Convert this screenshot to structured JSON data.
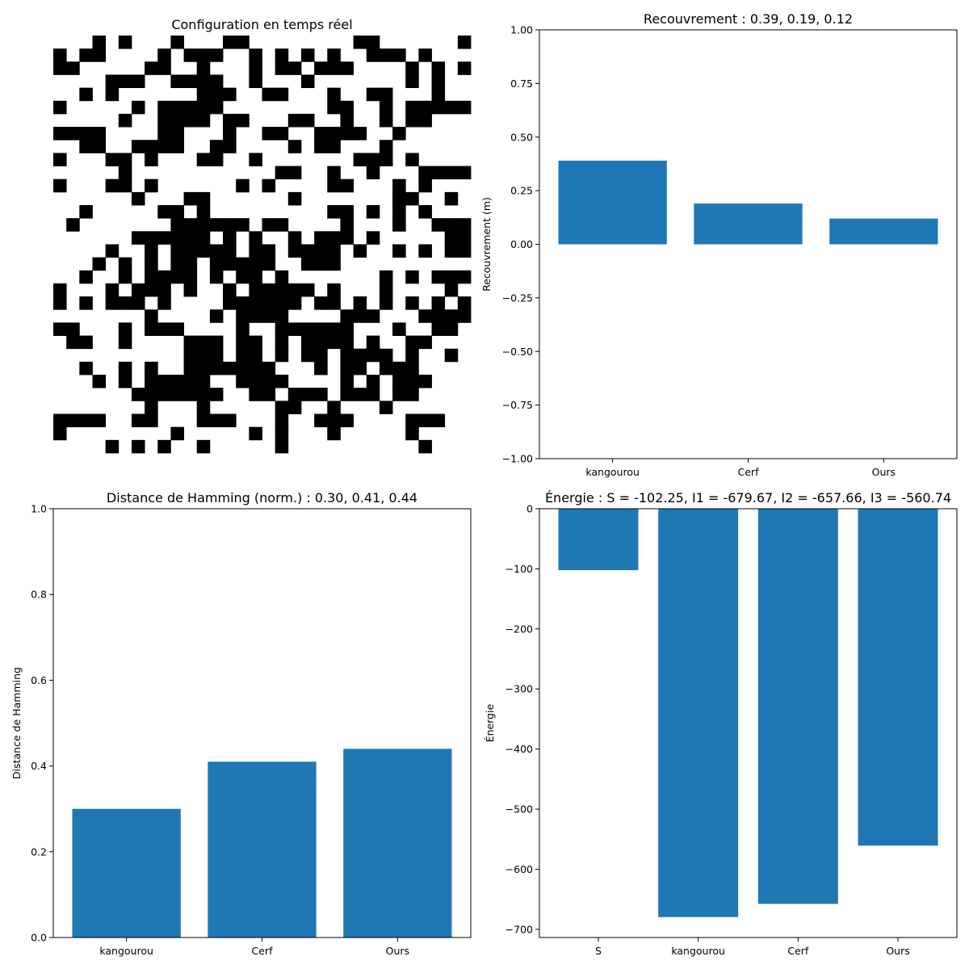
{
  "chart_data": [
    {
      "type": "heatmap",
      "title": "Configuration en temps réel",
      "rows": 32,
      "cols": 32,
      "colors": {
        "on": "#000000",
        "off": "#ffffff"
      },
      "axes_visible": false,
      "black_cells_by_row": [
        [
          3,
          5,
          9,
          13,
          14,
          23,
          24,
          31
        ],
        [
          0,
          2,
          3,
          8,
          10,
          11,
          12,
          15,
          17,
          19,
          21,
          24,
          25,
          26,
          28
        ],
        [
          0,
          1,
          7,
          8,
          11,
          15,
          17,
          18,
          20,
          21,
          22,
          27,
          29,
          31
        ],
        [
          4,
          5,
          6,
          9,
          10,
          11,
          12,
          15,
          19,
          27,
          29
        ],
        [
          2,
          4,
          11,
          12,
          13,
          16,
          17,
          21,
          24,
          25,
          29
        ],
        [
          0,
          6,
          8,
          9,
          10,
          11,
          12,
          21,
          22,
          25,
          27,
          28,
          29,
          30,
          31
        ],
        [
          5,
          8,
          9,
          10,
          11,
          13,
          14,
          18,
          19,
          22,
          25,
          27,
          28
        ],
        [
          0,
          1,
          2,
          3,
          8,
          9,
          13,
          16,
          17,
          20,
          21,
          22,
          23,
          26
        ],
        [
          2,
          3,
          6,
          7,
          8,
          9,
          12,
          13,
          18,
          20,
          21,
          25
        ],
        [
          0,
          4,
          5,
          7,
          11,
          12,
          15,
          23,
          24,
          25,
          27
        ],
        [
          5,
          17,
          18,
          21,
          24,
          28,
          29,
          30,
          31
        ],
        [
          0,
          4,
          5,
          7,
          14,
          16,
          21,
          22,
          26,
          28
        ],
        [
          6,
          10,
          11,
          18,
          26,
          27,
          30
        ],
        [
          2,
          8,
          9,
          11,
          21,
          22,
          24,
          26,
          28
        ],
        [
          1,
          9,
          10,
          11,
          12,
          13,
          14,
          16,
          17,
          22,
          26,
          29,
          30,
          31
        ],
        [
          6,
          7,
          8,
          9,
          10,
          11,
          13,
          15,
          18,
          20,
          21,
          22,
          24,
          30,
          31
        ],
        [
          4,
          7,
          9,
          10,
          11,
          12,
          13,
          15,
          16,
          18,
          19,
          20,
          21,
          23,
          26,
          28,
          30,
          31
        ],
        [
          3,
          5,
          7,
          9,
          10,
          12,
          13,
          14,
          15,
          16,
          19,
          20,
          21
        ],
        [
          2,
          5,
          7,
          8,
          9,
          10,
          12,
          14,
          15,
          17,
          25,
          27,
          29,
          30,
          31
        ],
        [
          0,
          4,
          6,
          7,
          8,
          10,
          13,
          15,
          16,
          17,
          18,
          19,
          21,
          25,
          30
        ],
        [
          0,
          2,
          4,
          5,
          6,
          8,
          13,
          14,
          15,
          16,
          17,
          18,
          20,
          21,
          23,
          25,
          27,
          29,
          31
        ],
        [
          7,
          12,
          14,
          15,
          16,
          17,
          22,
          23,
          24,
          28,
          29,
          30,
          31
        ],
        [
          0,
          1,
          5,
          7,
          8,
          9,
          14,
          17,
          18,
          19,
          20,
          21,
          22,
          26,
          29,
          30
        ],
        [
          1,
          2,
          5,
          10,
          11,
          12,
          14,
          15,
          17,
          19,
          20,
          21,
          22,
          24,
          27,
          28
        ],
        [
          10,
          11,
          12,
          14,
          15,
          17,
          19,
          20,
          22,
          23,
          24,
          25,
          27,
          30
        ],
        [
          2,
          5,
          7,
          10,
          11,
          12,
          13,
          14,
          15,
          16,
          20,
          22,
          23,
          25,
          26,
          27
        ],
        [
          3,
          5,
          7,
          8,
          9,
          10,
          11,
          14,
          15,
          16,
          17,
          22,
          24,
          26,
          27,
          28
        ],
        [
          6,
          7,
          8,
          9,
          10,
          11,
          12,
          15,
          16,
          18,
          19,
          20,
          22,
          23,
          24,
          26,
          27
        ],
        [
          7,
          11,
          17,
          18,
          21,
          25
        ],
        [
          0,
          1,
          2,
          3,
          6,
          7,
          11,
          12,
          13,
          17,
          20,
          21,
          22,
          27,
          28,
          29
        ],
        [
          0,
          9,
          15,
          17,
          21,
          27
        ],
        [
          4,
          6,
          8,
          11,
          17,
          28
        ]
      ]
    },
    {
      "type": "bar",
      "title": "Recouvrement : 0.39, 0.19, 0.12",
      "categories": [
        "kangourou",
        "Cerf",
        "Ours"
      ],
      "values": [
        0.39,
        0.19,
        0.12
      ],
      "xlabel": "",
      "ylabel": "Recouvrement (m)",
      "ylim": [
        -1.0,
        1.0
      ],
      "yticks": [
        -1.0,
        -0.75,
        -0.5,
        -0.25,
        0.0,
        0.25,
        0.5,
        0.75,
        1.0
      ],
      "ytick_labels": [
        "−1.00",
        "−0.75",
        "−0.50",
        "−0.25",
        "0.00",
        "0.25",
        "0.50",
        "0.75",
        "1.00"
      ],
      "color": "#1f77b4",
      "grid": false
    },
    {
      "type": "bar",
      "title": "Distance de Hamming (norm.) : 0.30, 0.41, 0.44",
      "categories": [
        "kangourou",
        "Cerf",
        "Ours"
      ],
      "values": [
        0.3,
        0.41,
        0.44
      ],
      "xlabel": "",
      "ylabel": "Distance de Hamming",
      "ylim": [
        0.0,
        1.0
      ],
      "yticks": [
        0.0,
        0.2,
        0.4,
        0.6,
        0.8,
        1.0
      ],
      "ytick_labels": [
        "0.0",
        "0.2",
        "0.4",
        "0.6",
        "0.8",
        "1.0"
      ],
      "color": "#1f77b4",
      "grid": false
    },
    {
      "type": "bar",
      "title": "Énergie : S = -102.25, I1 = -679.67, I2 = -657.66, I3 = -560.74",
      "categories": [
        "S",
        "kangourou",
        "Cerf",
        "Ours"
      ],
      "values": [
        -102.25,
        -679.67,
        -657.66,
        -560.74
      ],
      "xlabel": "",
      "ylabel": "Énergie",
      "ylim": [
        -713.65,
        0
      ],
      "yticks": [
        0,
        -100,
        -200,
        -300,
        -400,
        -500,
        -600,
        -700
      ],
      "ytick_labels": [
        "0",
        "−100",
        "−200",
        "−300",
        "−400",
        "−500",
        "−600",
        "−700"
      ],
      "color": "#1f77b4",
      "grid": false
    }
  ]
}
